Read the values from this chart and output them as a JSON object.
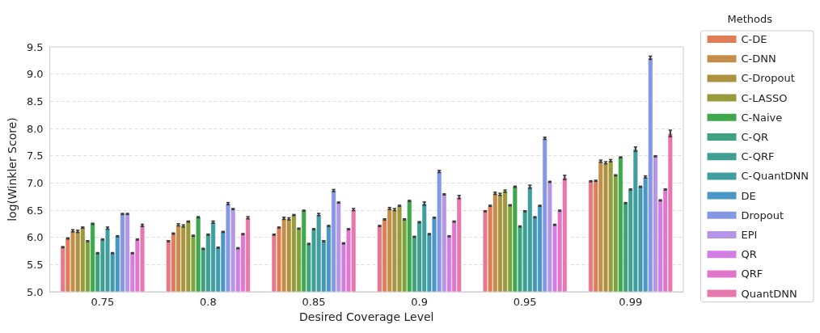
{
  "chart_data": {
    "type": "bar",
    "xlabel": "Desired Coverage Level",
    "ylabel": "log(Winkler Score)",
    "legend_title": "Methods",
    "categories": [
      "0.75",
      "0.8",
      "0.85",
      "0.9",
      "0.95",
      "0.99"
    ],
    "ylim": [
      5,
      9.5
    ],
    "yticks": [
      {
        "value": 5,
        "label": "5.0"
      },
      {
        "value": 5.5,
        "label": "5.5"
      },
      {
        "value": 6,
        "label": "6.0"
      },
      {
        "value": 6.5,
        "label": "6.5"
      },
      {
        "value": 7,
        "label": "7.0"
      },
      {
        "value": 7.5,
        "label": "7.5"
      },
      {
        "value": 8,
        "label": "8.0"
      },
      {
        "value": 8.5,
        "label": "8.5"
      },
      {
        "value": 9,
        "label": "9.0"
      },
      {
        "value": 9.5,
        "label": "9.5"
      }
    ],
    "grid": "y",
    "legend": "right",
    "series": [
      {
        "color": "#e5788a",
        "values": [
          5.82,
          5.93,
          6.05,
          6.21,
          6.48,
          7.03
        ],
        "errors": [
          0.01,
          0.01,
          0.01,
          0.01,
          0.01,
          0.01
        ]
      },
      {
        "name": "C-DE",
        "color": "#e27c55",
        "values": [
          5.98,
          6.07,
          6.18,
          6.33,
          6.58,
          7.04
        ],
        "errors": [
          0.01,
          0.01,
          0.01,
          0.01,
          0.01,
          0.01
        ]
      },
      {
        "name": "C-DNN",
        "color": "#c58e48",
        "values": [
          6.12,
          6.23,
          6.35,
          6.53,
          6.81,
          7.4
        ],
        "errors": [
          0.02,
          0.02,
          0.02,
          0.02,
          0.02,
          0.02
        ]
      },
      {
        "name": "C-Dropout",
        "color": "#ad9340",
        "values": [
          6.11,
          6.21,
          6.34,
          6.51,
          6.79,
          7.37
        ],
        "errors": [
          0.02,
          0.02,
          0.02,
          0.02,
          0.02,
          0.02
        ]
      },
      {
        "name": "C-LASSO",
        "color": "#989a3b",
        "values": [
          6.18,
          6.29,
          6.41,
          6.58,
          6.85,
          7.41
        ],
        "errors": [
          0.01,
          0.01,
          0.01,
          0.01,
          0.02,
          0.02
        ]
      },
      {
        "color": "#7da33c",
        "values": [
          5.93,
          6.03,
          6.16,
          6.33,
          6.59,
          7.14
        ],
        "errors": [
          0.01,
          0.01,
          0.01,
          0.01,
          0.01,
          0.01
        ]
      },
      {
        "name": "C-Naive",
        "color": "#3fa84c",
        "values": [
          6.25,
          6.37,
          6.49,
          6.67,
          6.93,
          7.47
        ],
        "errors": [
          0.01,
          0.01,
          0.01,
          0.01,
          0.01,
          0.01
        ]
      },
      {
        "name": "C-QR",
        "color": "#3ea17f",
        "values": [
          5.71,
          5.79,
          5.88,
          6.01,
          6.2,
          6.63
        ],
        "errors": [
          0.01,
          0.01,
          0.01,
          0.01,
          0.01,
          0.01
        ]
      },
      {
        "name": "C-QRF",
        "color": "#3e9f92",
        "values": [
          5.96,
          6.05,
          6.15,
          6.28,
          6.48,
          6.88
        ],
        "errors": [
          0.01,
          0.01,
          0.01,
          0.01,
          0.01,
          0.01
        ]
      },
      {
        "name": "C-QuantDNN",
        "color": "#409e9f",
        "values": [
          6.17,
          6.28,
          6.42,
          6.62,
          6.93,
          7.62
        ],
        "errors": [
          0.02,
          0.02,
          0.02,
          0.03,
          0.03,
          0.04
        ]
      },
      {
        "color": "#439aac",
        "values": [
          5.71,
          5.81,
          5.93,
          6.06,
          6.37,
          6.93
        ],
        "errors": [
          0.01,
          0.01,
          0.01,
          0.01,
          0.01,
          0.01
        ]
      },
      {
        "name": "DE",
        "color": "#4a96c6",
        "values": [
          6.02,
          6.1,
          6.21,
          6.36,
          6.58,
          7.11
        ],
        "errors": [
          0.01,
          0.01,
          0.01,
          0.01,
          0.01,
          0.02
        ]
      },
      {
        "name": "Dropout",
        "color": "#8598e6",
        "values": [
          6.43,
          6.62,
          6.86,
          7.21,
          7.82,
          9.3
        ],
        "errors": [
          0.01,
          0.02,
          0.02,
          0.02,
          0.02,
          0.03
        ]
      },
      {
        "name": "EPI",
        "color": "#b595e6",
        "values": [
          6.43,
          6.52,
          6.64,
          6.79,
          7.02,
          7.49
        ],
        "errors": [
          0.01,
          0.01,
          0.01,
          0.01,
          0.01,
          0.01
        ]
      },
      {
        "name": "QR",
        "color": "#d37ee4",
        "values": [
          5.71,
          5.8,
          5.89,
          6.02,
          6.23,
          6.68
        ],
        "errors": [
          0.01,
          0.01,
          0.01,
          0.01,
          0.01,
          0.01
        ]
      },
      {
        "name": "QRF",
        "color": "#e077cd",
        "values": [
          5.96,
          6.06,
          6.15,
          6.29,
          6.49,
          6.88
        ],
        "errors": [
          0.01,
          0.01,
          0.01,
          0.01,
          0.01,
          0.01
        ]
      },
      {
        "name": "QuantDNN",
        "color": "#e678ae",
        "values": [
          6.22,
          6.36,
          6.51,
          6.74,
          7.1,
          7.91
        ],
        "errors": [
          0.02,
          0.02,
          0.02,
          0.03,
          0.04,
          0.06
        ]
      }
    ]
  }
}
